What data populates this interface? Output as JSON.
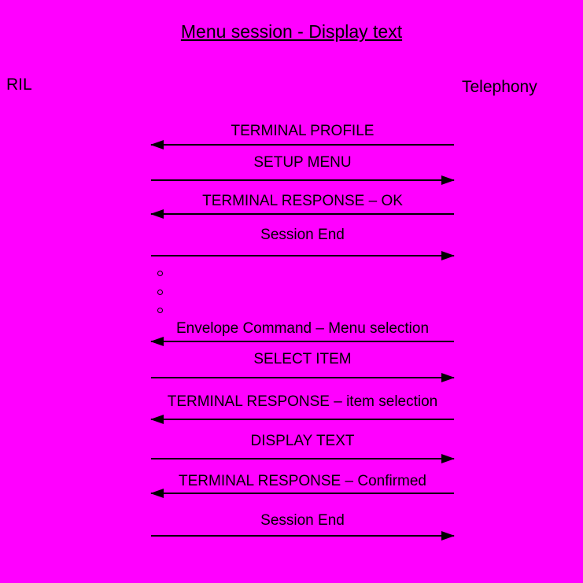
{
  "title": "Menu session - Display text",
  "actors": {
    "left": "RIL",
    "right": "Telephony"
  },
  "colors": {
    "background": "#ff00ff",
    "text": "#000000",
    "line": "#000000"
  },
  "messages": [
    {
      "type": "message",
      "label": "TERMINAL PROFILE",
      "direction": "left"
    },
    {
      "type": "message",
      "label": "SETUP MENU",
      "direction": "right"
    },
    {
      "type": "message",
      "label": "TERMINAL RESPONSE – OK",
      "direction": "left"
    },
    {
      "type": "message",
      "label": "Session End",
      "direction": "right"
    },
    {
      "type": "ellipsis",
      "dot_count": 3
    },
    {
      "type": "message",
      "label": "Envelope Command – Menu selection",
      "direction": "left"
    },
    {
      "type": "message",
      "label": "SELECT ITEM",
      "direction": "right"
    },
    {
      "type": "message",
      "label": "TERMINAL RESPONSE – item selection",
      "direction": "left"
    },
    {
      "type": "message",
      "label": "DISPLAY TEXT",
      "direction": "right"
    },
    {
      "type": "message",
      "label": "TERMINAL RESPONSE – Confirmed",
      "direction": "left"
    },
    {
      "type": "message",
      "label": "Session End",
      "direction": "right"
    }
  ]
}
